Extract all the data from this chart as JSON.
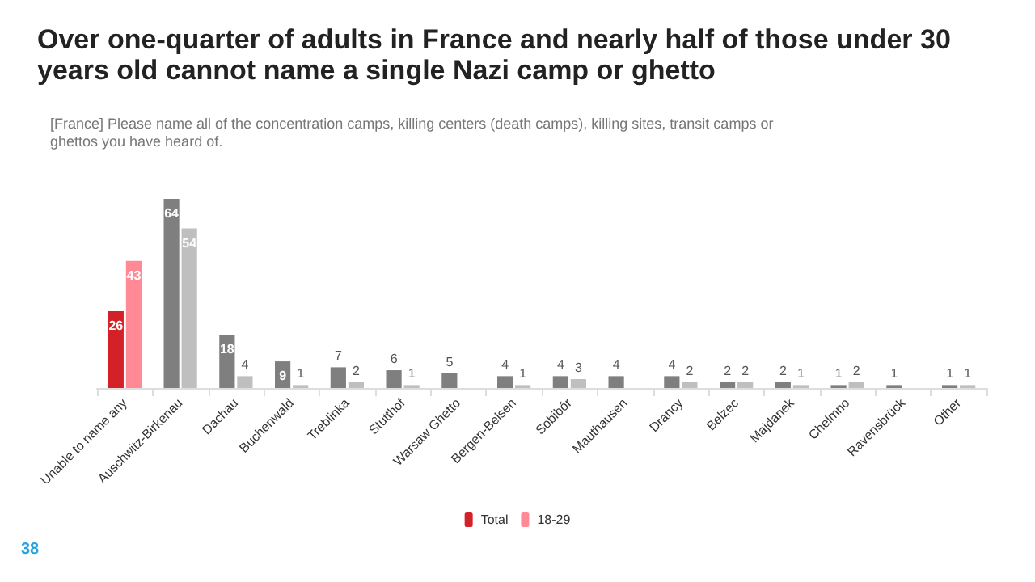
{
  "chart_data": {
    "type": "bar",
    "title": "Over one-quarter of adults in France and nearly half of those under 30 years old cannot name a single Nazi camp or ghetto",
    "subtitle": "[France] Please name all of the concentration camps, killing centers (death camps), killing sites, transit camps or ghettos you have heard of.",
    "categories": [
      "Unable to name any",
      "Auschwitz-Birkenau",
      "Dachau",
      "Buchenwald",
      "Treblinka",
      "Stutthof",
      "Warsaw Ghetto",
      "Bergen-Belsen",
      "Sobibór",
      "Mauthausen",
      "Drancy",
      "Belzec",
      "Majdanek",
      "Chelmno",
      "Ravensbrück",
      "Other"
    ],
    "series": [
      {
        "name": "Total",
        "color": "#d42027",
        "colors": [
          "#d42027",
          "#7f7f7f",
          "#7f7f7f",
          "#7f7f7f",
          "#7f7f7f",
          "#7f7f7f",
          "#7f7f7f",
          "#7f7f7f",
          "#7f7f7f",
          "#7f7f7f",
          "#7f7f7f",
          "#7f7f7f",
          "#7f7f7f",
          "#7f7f7f",
          "#7f7f7f",
          "#7f7f7f"
        ],
        "values": [
          26,
          64,
          18,
          9,
          7,
          6,
          5,
          4,
          4,
          4,
          4,
          2,
          2,
          1,
          1,
          1
        ]
      },
      {
        "name": "18-29",
        "color": "#ff8a95",
        "colors": [
          "#ff8a95",
          "#bfbfbf",
          "#bfbfbf",
          "#bfbfbf",
          "#bfbfbf",
          "#bfbfbf",
          "#bfbfbf",
          "#bfbfbf",
          "#bfbfbf",
          "#bfbfbf",
          "#bfbfbf",
          "#bfbfbf",
          "#bfbfbf",
          "#bfbfbf",
          "#bfbfbf",
          "#bfbfbf"
        ],
        "values": [
          43,
          54,
          4,
          1,
          2,
          1,
          null,
          1,
          3,
          null,
          2,
          2,
          1,
          2,
          null,
          1
        ]
      }
    ],
    "data_labels": true,
    "legend": "bottom",
    "annotations": [
      "38"
    ]
  }
}
